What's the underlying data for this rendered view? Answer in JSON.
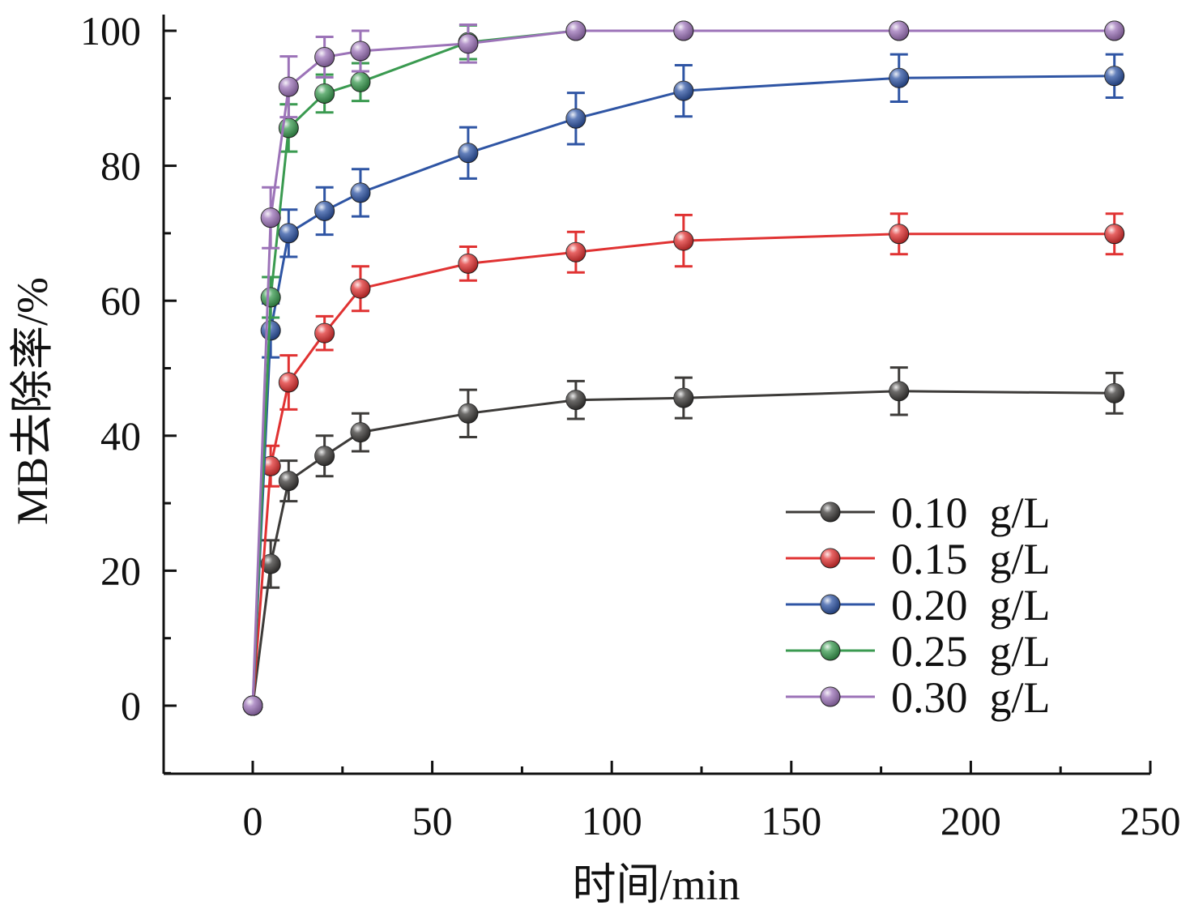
{
  "chart_data": {
    "type": "line",
    "title": "",
    "xlabel": "时间/min",
    "ylabel": "MB去除率/%",
    "xlim": [
      -25,
      250
    ],
    "ylim": [
      -10,
      100
    ],
    "x_ticks": [
      0,
      50,
      100,
      150,
      200,
      250
    ],
    "y_ticks": [
      0,
      20,
      40,
      60,
      80,
      100
    ],
    "x_tick_labels": [
      "0",
      "50",
      "100",
      "150",
      "200",
      "250"
    ],
    "y_tick_labels": [
      "0",
      "20",
      "40",
      "60",
      "80",
      "100"
    ],
    "grid": false,
    "legend_position": "bottom-right",
    "x": [
      0,
      5,
      10,
      20,
      30,
      60,
      90,
      120,
      180,
      240
    ],
    "series": [
      {
        "name": "0.10  g/L",
        "color": "#3d3b39",
        "values": [
          0,
          21.0,
          33.3,
          37.0,
          40.5,
          43.3,
          45.3,
          45.6,
          46.6,
          46.3
        ],
        "errors": [
          0,
          3.5,
          3.0,
          3.0,
          2.8,
          3.5,
          2.8,
          3.0,
          3.5,
          3.0
        ]
      },
      {
        "name": "0.15  g/L",
        "color": "#e03232",
        "values": [
          0,
          35.5,
          47.9,
          55.2,
          61.8,
          65.5,
          67.2,
          68.9,
          69.9,
          69.9
        ],
        "errors": [
          0,
          3.0,
          4.0,
          2.5,
          3.3,
          2.5,
          3.0,
          3.8,
          3.0,
          3.0
        ]
      },
      {
        "name": "0.20  g/L",
        "color": "#2f55a4",
        "values": [
          0,
          55.6,
          70.0,
          73.3,
          76.0,
          81.9,
          87.0,
          91.1,
          93.0,
          93.3
        ],
        "errors": [
          0,
          4.0,
          3.5,
          3.5,
          3.5,
          3.8,
          3.8,
          3.8,
          3.5,
          3.2
        ]
      },
      {
        "name": "0.25  g/L",
        "color": "#3a9a50",
        "values": [
          0,
          60.5,
          85.6,
          90.7,
          92.4,
          98.3,
          100,
          100,
          100,
          100
        ],
        "errors": [
          0,
          3.0,
          3.5,
          2.8,
          2.8,
          2.5,
          0,
          0,
          0,
          0
        ]
      },
      {
        "name": "0.30  g/L",
        "color": "#9c73b8",
        "values": [
          0,
          72.3,
          91.7,
          96.1,
          97.0,
          98.1,
          100,
          100,
          100,
          100
        ],
        "errors": [
          0,
          4.5,
          4.5,
          3.0,
          3.0,
          2.8,
          0,
          0,
          0,
          0
        ]
      }
    ]
  }
}
